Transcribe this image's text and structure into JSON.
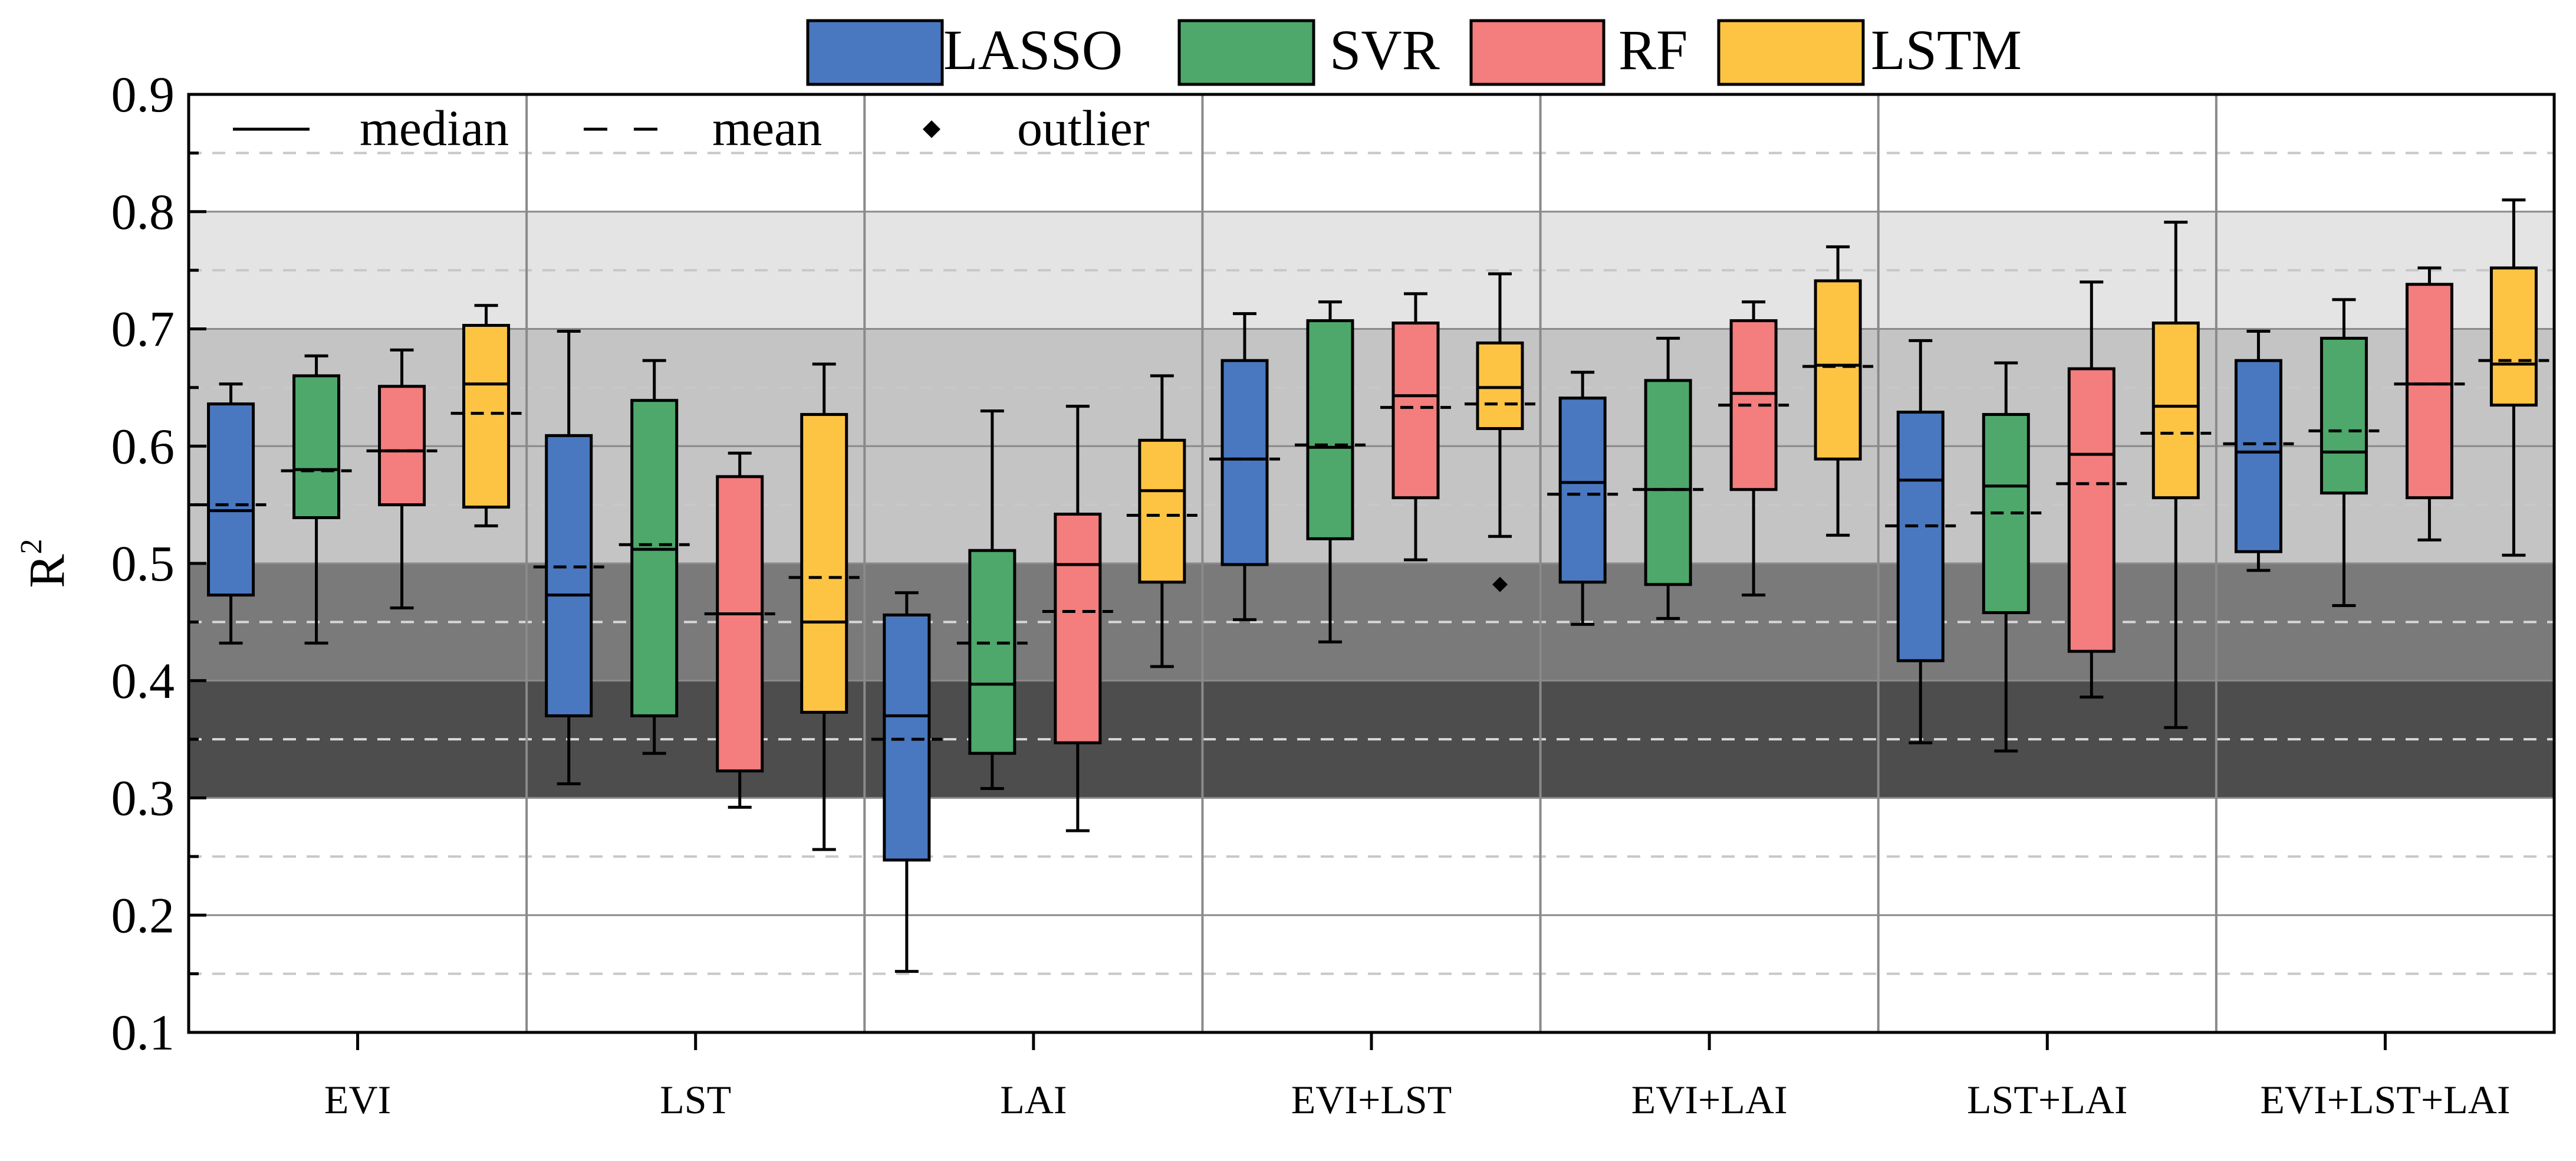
{
  "chart_data": {
    "type": "box",
    "title": "",
    "xlabel": "",
    "ylabel": "R",
    "ylabel_superscript": "2",
    "ylim": [
      0.1,
      0.9
    ],
    "yticks": [
      "0.1",
      "0.2",
      "0.3",
      "0.4",
      "0.5",
      "0.6",
      "0.7",
      "0.8",
      "0.9"
    ],
    "categories": [
      "EVI",
      "LST",
      "LAI",
      "EVI+LST",
      "EVI+LAI",
      "LST+LAI",
      "EVI+LST+LAI"
    ],
    "bands": [
      {
        "from": 0.3,
        "to": 0.4,
        "color": "#4d4d4d"
      },
      {
        "from": 0.4,
        "to": 0.5,
        "color": "#7a7a7a"
      },
      {
        "from": 0.5,
        "to": 0.7,
        "color": "#c4c4c4"
      },
      {
        "from": 0.7,
        "to": 0.8,
        "color": "#e4e4e4"
      }
    ],
    "reference_lines": [
      0.15,
      0.25,
      0.35,
      0.45,
      0.55,
      0.65,
      0.75,
      0.85
    ],
    "legend_key": {
      "median": "median",
      "mean": "mean",
      "outlier": "outlier"
    },
    "series": [
      {
        "name": "LASSO",
        "color": "#4a78c0",
        "boxes": [
          {
            "min": 0.432,
            "q1": 0.473,
            "median": 0.545,
            "mean": 0.55,
            "q3": 0.636,
            "max": 0.653,
            "outliers": []
          },
          {
            "min": 0.312,
            "q1": 0.37,
            "median": 0.473,
            "mean": 0.497,
            "q3": 0.609,
            "max": 0.698,
            "outliers": []
          },
          {
            "min": 0.152,
            "q1": 0.247,
            "median": 0.37,
            "mean": 0.35,
            "q3": 0.456,
            "max": 0.475,
            "outliers": []
          },
          {
            "min": 0.452,
            "q1": 0.499,
            "median": 0.589,
            "mean": 0.589,
            "q3": 0.673,
            "max": 0.713,
            "outliers": []
          },
          {
            "min": 0.448,
            "q1": 0.484,
            "median": 0.569,
            "mean": 0.559,
            "q3": 0.641,
            "max": 0.663,
            "outliers": []
          },
          {
            "min": 0.347,
            "q1": 0.417,
            "median": 0.571,
            "mean": 0.532,
            "q3": 0.629,
            "max": 0.69,
            "outliers": []
          },
          {
            "min": 0.494,
            "q1": 0.51,
            "median": 0.595,
            "mean": 0.602,
            "q3": 0.673,
            "max": 0.698,
            "outliers": []
          }
        ]
      },
      {
        "name": "SVR",
        "color": "#4ea86b",
        "boxes": [
          {
            "min": 0.432,
            "q1": 0.539,
            "median": 0.58,
            "mean": 0.579,
            "q3": 0.66,
            "max": 0.677,
            "outliers": []
          },
          {
            "min": 0.338,
            "q1": 0.37,
            "median": 0.512,
            "mean": 0.516,
            "q3": 0.639,
            "max": 0.673,
            "outliers": []
          },
          {
            "min": 0.308,
            "q1": 0.338,
            "median": 0.397,
            "mean": 0.432,
            "q3": 0.511,
            "max": 0.63,
            "outliers": []
          },
          {
            "min": 0.433,
            "q1": 0.521,
            "median": 0.599,
            "mean": 0.601,
            "q3": 0.707,
            "max": 0.723,
            "outliers": []
          },
          {
            "min": 0.453,
            "q1": 0.482,
            "median": 0.563,
            "mean": 0.563,
            "q3": 0.656,
            "max": 0.692,
            "outliers": []
          },
          {
            "min": 0.34,
            "q1": 0.458,
            "median": 0.566,
            "mean": 0.543,
            "q3": 0.627,
            "max": 0.671,
            "outliers": []
          },
          {
            "min": 0.464,
            "q1": 0.56,
            "median": 0.595,
            "mean": 0.613,
            "q3": 0.692,
            "max": 0.725,
            "outliers": []
          }
        ]
      },
      {
        "name": "RF",
        "color": "#f47d7d",
        "boxes": [
          {
            "min": 0.462,
            "q1": 0.55,
            "median": 0.596,
            "mean": 0.596,
            "q3": 0.651,
            "max": 0.682,
            "outliers": []
          },
          {
            "min": 0.292,
            "q1": 0.323,
            "median": 0.457,
            "mean": 0.457,
            "q3": 0.574,
            "max": 0.594,
            "outliers": []
          },
          {
            "min": 0.272,
            "q1": 0.347,
            "median": 0.499,
            "mean": 0.459,
            "q3": 0.542,
            "max": 0.634,
            "outliers": []
          },
          {
            "min": 0.503,
            "q1": 0.556,
            "median": 0.643,
            "mean": 0.633,
            "q3": 0.705,
            "max": 0.73,
            "outliers": []
          },
          {
            "min": 0.473,
            "q1": 0.563,
            "median": 0.645,
            "mean": 0.635,
            "q3": 0.707,
            "max": 0.723,
            "outliers": []
          },
          {
            "min": 0.386,
            "q1": 0.425,
            "median": 0.593,
            "mean": 0.568,
            "q3": 0.666,
            "max": 0.74,
            "outliers": []
          },
          {
            "min": 0.52,
            "q1": 0.556,
            "median": 0.653,
            "mean": 0.653,
            "q3": 0.738,
            "max": 0.752,
            "outliers": []
          }
        ]
      },
      {
        "name": "LSTM",
        "color": "#fdc444",
        "boxes": [
          {
            "min": 0.532,
            "q1": 0.548,
            "median": 0.653,
            "mean": 0.628,
            "q3": 0.703,
            "max": 0.72,
            "outliers": []
          },
          {
            "min": 0.256,
            "q1": 0.373,
            "median": 0.45,
            "mean": 0.488,
            "q3": 0.627,
            "max": 0.67,
            "outliers": []
          },
          {
            "min": 0.412,
            "q1": 0.484,
            "median": 0.562,
            "mean": 0.541,
            "q3": 0.605,
            "max": 0.66,
            "outliers": []
          },
          {
            "min": 0.523,
            "q1": 0.615,
            "median": 0.65,
            "mean": 0.636,
            "q3": 0.688,
            "max": 0.747,
            "outliers": [
              0.482
            ]
          },
          {
            "min": 0.524,
            "q1": 0.589,
            "median": 0.669,
            "mean": 0.668,
            "q3": 0.741,
            "max": 0.77,
            "outliers": []
          },
          {
            "min": 0.36,
            "q1": 0.556,
            "median": 0.634,
            "mean": 0.611,
            "q3": 0.705,
            "max": 0.791,
            "outliers": []
          },
          {
            "min": 0.507,
            "q1": 0.635,
            "median": 0.67,
            "mean": 0.673,
            "q3": 0.752,
            "max": 0.81,
            "outliers": []
          }
        ]
      }
    ]
  }
}
